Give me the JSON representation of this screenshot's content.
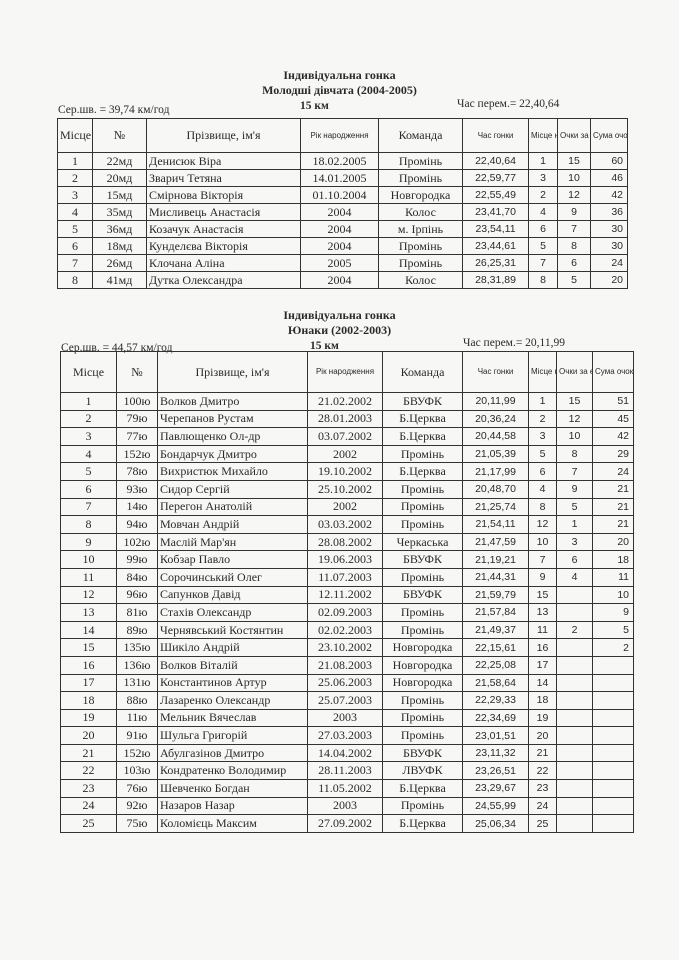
{
  "headers": [
    "Місце",
    "№",
    "Прізвище, ім'я",
    "Рік народження",
    "Команда",
    "Час гонки",
    "Місце на етапі",
    "Очки за етап",
    "Сума очок"
  ],
  "section1": {
    "title": "Індивідуальна  гонка",
    "subtitle": "Молодші дівчата (2004-2005)",
    "avg_speed": "Сер.шв. = 39,74  км/год",
    "distance": "15 км",
    "winner_time": "Час перем.= 22,40,64",
    "rows": [
      [
        "1",
        "22мд",
        "Денисюк Віра",
        "18.02.2005",
        "Промінь",
        "22,40,64",
        "1",
        "15",
        "60"
      ],
      [
        "2",
        "20мд",
        "Зварич Тетяна",
        "14.01.2005",
        "Промінь",
        "22,59,77",
        "3",
        "10",
        "46"
      ],
      [
        "3",
        "15мд",
        "Смірнова Вікторія",
        "01.10.2004",
        "Новгородка",
        "22,55,49",
        "2",
        "12",
        "42"
      ],
      [
        "4",
        "35мд",
        "Мисливець Анастасія",
        "2004",
        "Колос",
        "23,41,70",
        "4",
        "9",
        "36"
      ],
      [
        "5",
        "36мд",
        "Козачук Анастасія",
        "2004",
        "м. Ірпінь",
        "23,54,11",
        "6",
        "7",
        "30"
      ],
      [
        "6",
        "18мд",
        "Кунделєва Вікторія",
        "2004",
        "Промінь",
        "23,44,61",
        "5",
        "8",
        "30"
      ],
      [
        "7",
        "26мд",
        "Клочана Аліна",
        "2005",
        "Промінь",
        "26,25,31",
        "7",
        "6",
        "24"
      ],
      [
        "8",
        "41мд",
        "Дутка Олександра",
        "2004",
        "Колос",
        "28,31,89",
        "8",
        "5",
        "20"
      ]
    ]
  },
  "section2": {
    "title": "Індивідуальна  гонка",
    "subtitle": "Юнаки (2002-2003)",
    "avg_speed": "Сер.шв. = 44,57 км/год",
    "distance": "15 км",
    "winner_time": "Час перем.= 20,11,99",
    "rows": [
      [
        "1",
        "100ю",
        "Волков Дмитро",
        "21.02.2002",
        "БВУФК",
        "20,11,99",
        "1",
        "15",
        "51"
      ],
      [
        "2",
        "79ю",
        "Черепанов Рустам",
        "28.01.2003",
        "Б.Церква",
        "20,36,24",
        "2",
        "12",
        "45"
      ],
      [
        "3",
        "77ю",
        "Павлющенко Ол-др",
        "03.07.2002",
        "Б.Церква",
        "20,44,58",
        "3",
        "10",
        "42"
      ],
      [
        "4",
        "152ю",
        "Бондарчук Дмитро",
        "2002",
        "Промінь",
        "21,05,39",
        "5",
        "8",
        "29"
      ],
      [
        "5",
        "78ю",
        "Вихристюк Михайло",
        "19.10.2002",
        "Б.Церква",
        "21,17,99",
        "6",
        "7",
        "24"
      ],
      [
        "6",
        "93ю",
        "Сидор Сергій",
        "25.10.2002",
        "Промінь",
        "20,48,70",
        "4",
        "9",
        "21"
      ],
      [
        "7",
        "14ю",
        "Перегон Анатолій",
        "2002",
        "Промінь",
        "21,25,74",
        "8",
        "5",
        "21"
      ],
      [
        "8",
        "94ю",
        "Мовчан Андрій",
        "03.03.2002",
        "Промінь",
        "21,54,11",
        "12",
        "1",
        "21"
      ],
      [
        "9",
        "102ю",
        "Маслій Мар'ян",
        "28.08.2002",
        "Черкаська",
        "21,47,59",
        "10",
        "3",
        "20"
      ],
      [
        "10",
        "99ю",
        "Кобзар Павло",
        "19.06.2003",
        "БВУФК",
        "21,19,21",
        "7",
        "6",
        "18"
      ],
      [
        "11",
        "84ю",
        "Сорочинський Олег",
        "11.07.2003",
        "Промінь",
        "21,44,31",
        "9",
        "4",
        "11"
      ],
      [
        "12",
        "96ю",
        "Сапунков Давід",
        "12.11.2002",
        "БВУФК",
        "21,59,79",
        "15",
        "",
        "10"
      ],
      [
        "13",
        "81ю",
        "Стахів Олександр",
        "02.09.2003",
        "Промінь",
        "21,57,84",
        "13",
        "",
        "9"
      ],
      [
        "14",
        "89ю",
        "Чернявський Костянтин",
        "02.02.2003",
        "Промінь",
        "21,49,37",
        "11",
        "2",
        "5"
      ],
      [
        "15",
        "135ю",
        "Шикіло Андрій",
        "23.10.2002",
        "Новгородка",
        "22,15,61",
        "16",
        "",
        "2"
      ],
      [
        "16",
        "136ю",
        "Волков Віталій",
        "21.08.2003",
        "Новгородка",
        "22,25,08",
        "17",
        "",
        ""
      ],
      [
        "17",
        "131ю",
        "Константинов Артур",
        "25.06.2003",
        "Новгородка",
        "21,58,64",
        "14",
        "",
        ""
      ],
      [
        "18",
        "88ю",
        "Лазаренко Олександр",
        "25.07.2003",
        "Промінь",
        "22,29,33",
        "18",
        "",
        ""
      ],
      [
        "19",
        "11ю",
        "Мельник Вячеслав",
        "2003",
        "Промінь",
        "22,34,69",
        "19",
        "",
        ""
      ],
      [
        "20",
        "91ю",
        "Шульга Григорій",
        "27.03.2003",
        "Промінь",
        "23,01,51",
        "20",
        "",
        ""
      ],
      [
        "21",
        "152ю",
        "Абулгазінов Дмитро",
        "14.04.2002",
        "БВУФК",
        "23,11,32",
        "21",
        "",
        ""
      ],
      [
        "22",
        "103ю",
        "Кондратенко Володимир",
        "28.11.2003",
        "ЛВУФК",
        "23,26,51",
        "22",
        "",
        ""
      ],
      [
        "23",
        "76ю",
        "Шевченко Богдан",
        "11.05.2002",
        "Б.Церква",
        "23,29,67",
        "23",
        "",
        ""
      ],
      [
        "24",
        "92ю",
        "Назаров Назар",
        "2003",
        "Промінь",
        "24,55,99",
        "24",
        "",
        ""
      ],
      [
        "25",
        "75ю",
        "Коломієць Максим",
        "27.09.2002",
        "Б.Церква",
        "25,06,34",
        "25",
        "",
        ""
      ]
    ]
  }
}
